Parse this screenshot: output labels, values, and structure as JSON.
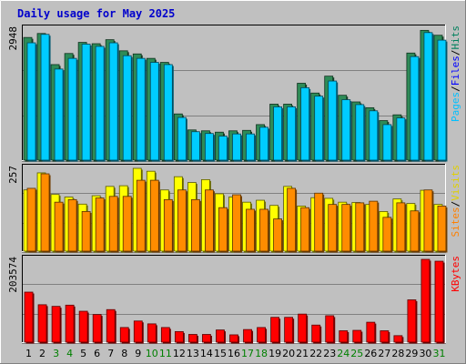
{
  "chart_data": {
    "type": "bar",
    "title": "Daily usage for May 2025",
    "days": [
      "1",
      "2",
      "3",
      "4",
      "5",
      "6",
      "7",
      "8",
      "9",
      "10",
      "11",
      "12",
      "13",
      "14",
      "15",
      "16",
      "17",
      "18",
      "19",
      "20",
      "21",
      "22",
      "23",
      "24",
      "25",
      "26",
      "27",
      "28",
      "29",
      "30",
      "31"
    ],
    "weekend_days": [
      "3",
      "4",
      "10",
      "11",
      "17",
      "18",
      "24",
      "25",
      "31"
    ],
    "panels": [
      {
        "id": "hits-files",
        "ymax": 2948,
        "ymax_label": "2948",
        "legend": [
          {
            "text": "Hits",
            "color": "#00805c"
          },
          {
            "text": "Files",
            "color": "#0000ff"
          },
          {
            "text": "Pages",
            "color": "#00c0ff"
          }
        ],
        "series": [
          {
            "name": "Hits",
            "color": "#2e8b57",
            "values": [
              2760,
              2850,
              2150,
              2400,
              2650,
              2620,
              2710,
              2460,
              2390,
              2290,
              2200,
              1040,
              680,
              660,
              630,
              660,
              670,
              800,
              1260,
              1260,
              1730,
              1510,
              1890,
              1460,
              1310,
              1180,
              890,
              1020,
              2410,
              2920,
              2810
            ]
          },
          {
            "name": "Files",
            "color": "#00ccff",
            "values": [
              2640,
              2830,
              2050,
              2290,
              2610,
              2560,
              2640,
              2350,
              2290,
              2200,
              2150,
              960,
              640,
              600,
              540,
              590,
              590,
              740,
              1200,
              1200,
              1630,
              1440,
              1780,
              1360,
              1250,
              1110,
              800,
              950,
              2330,
              2870,
              2700
            ]
          }
        ]
      },
      {
        "id": "visits-sites",
        "ymax": 257,
        "ymax_label": "257",
        "legend": [
          {
            "text": "Visits",
            "color": "#e0d000"
          },
          {
            "text": "Sites",
            "color": "#ff8000"
          }
        ],
        "series": [
          {
            "name": "Visits",
            "color": "#ffff00",
            "values": [
              190,
              243,
              176,
              168,
              146,
              172,
              201,
              203,
              257,
              248,
              190,
              231,
              213,
              222,
              178,
              168,
              152,
              158,
              142,
              201,
              140,
              166,
              164,
              152,
              151,
              145,
              123,
              162,
              148,
              189,
              145
            ]
          },
          {
            "name": "Sites",
            "color": "#ff8c00",
            "values": [
              195,
              240,
              152,
              160,
              123,
              165,
              170,
              170,
              220,
              220,
              160,
              190,
              160,
              190,
              135,
              175,
              130,
              130,
              100,
              195,
              135,
              180,
              145,
              145,
              150,
              155,
              105,
              150,
              125,
              190,
              140
            ]
          }
        ]
      },
      {
        "id": "kbytes",
        "ymax": 203574,
        "ymax_label": "203574",
        "legend": [
          {
            "text": "KBytes",
            "color": "#ff0000"
          }
        ],
        "series": [
          {
            "name": "KBytes",
            "color": "#ff0000",
            "values": [
              123000,
              92000,
              88000,
              91000,
              76000,
              68000,
              80000,
              36000,
              52000,
              45000,
              36000,
              26000,
              19000,
              19000,
              30000,
              18000,
              31000,
              36000,
              61000,
              61000,
              69000,
              42000,
              65000,
              28000,
              29000,
              49000,
              28000,
              16000,
              104000,
              203574,
              199000
            ]
          }
        ]
      }
    ]
  }
}
